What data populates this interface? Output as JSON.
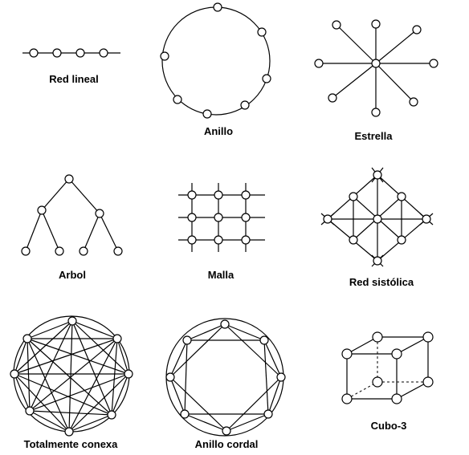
{
  "topologies": [
    {
      "id": "red-lineal",
      "label": "Red lineal"
    },
    {
      "id": "anillo",
      "label": "Anillo"
    },
    {
      "id": "estrella",
      "label": "Estrella"
    },
    {
      "id": "arbol",
      "label": "Arbol"
    },
    {
      "id": "malla",
      "label": "Malla"
    },
    {
      "id": "red-sistolica",
      "label": "Red sistólica"
    },
    {
      "id": "totalmente-conexa",
      "label": "Totalmente conexa"
    },
    {
      "id": "anillo-cordal",
      "label": "Anillo cordal"
    },
    {
      "id": "cubo-3",
      "label": "Cubo-3"
    }
  ]
}
